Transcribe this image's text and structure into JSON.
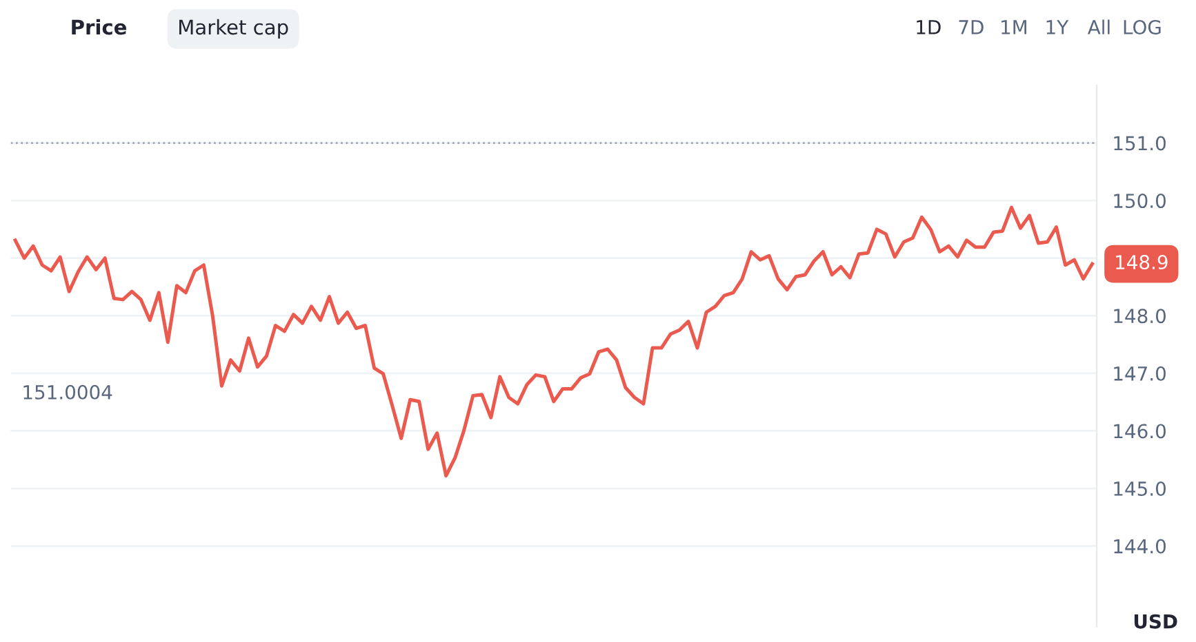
{
  "chart_data": {
    "type": "line",
    "ylabel": "USD",
    "annotations": [
      "Price",
      "Market cap",
      "1D",
      "7D",
      "1M",
      "1Y",
      "All",
      "LOG",
      "151.0004"
    ],
    "categories": [
      null,
      null,
      null,
      null,
      null,
      null,
      null,
      null,
      null,
      null,
      null,
      null,
      null,
      null,
      null,
      null,
      null,
      null,
      null,
      null,
      null,
      null,
      null,
      null,
      null,
      null,
      null,
      null,
      null,
      null,
      null,
      null,
      null,
      null,
      null,
      null,
      null,
      null,
      null,
      null,
      null,
      null,
      null,
      null,
      null,
      null,
      null,
      null,
      null,
      null,
      null,
      null,
      null,
      null,
      null,
      null,
      null,
      null,
      null,
      null,
      null,
      null,
      null,
      null,
      null,
      null,
      null,
      null,
      null,
      null,
      null,
      null,
      null,
      null,
      null,
      null,
      null,
      null,
      null,
      null,
      null,
      null,
      null,
      null,
      null,
      null,
      null,
      null,
      null,
      null,
      null,
      null,
      null,
      null,
      null,
      null,
      null,
      null,
      null,
      null,
      null,
      null,
      null,
      null,
      null,
      null,
      null,
      null,
      null,
      null,
      null,
      null,
      null,
      null,
      null,
      null,
      null,
      null,
      null,
      null,
      null
    ],
    "series": [
      {
        "color": "#ea5a4f",
        "values": [
          149.31,
          149.0,
          149.21,
          148.88,
          148.78,
          149.02,
          148.42,
          148.76,
          149.02,
          148.8,
          149.0,
          148.3,
          148.28,
          148.42,
          148.28,
          147.92,
          148.4,
          147.54,
          148.52,
          148.4,
          148.78,
          148.88,
          147.99,
          146.78,
          147.23,
          147.04,
          147.61,
          147.11,
          147.3,
          147.83,
          147.73,
          148.02,
          147.87,
          148.16,
          147.92,
          148.33,
          147.87,
          148.06,
          147.78,
          147.83,
          147.09,
          146.99,
          146.44,
          145.87,
          146.54,
          146.51,
          145.68,
          145.96,
          145.22,
          145.53,
          146.01,
          146.61,
          146.63,
          146.23,
          146.94,
          146.58,
          146.47,
          146.8,
          146.97,
          146.94,
          146.51,
          146.73,
          146.73,
          146.92,
          146.99,
          147.37,
          147.42,
          147.23,
          146.75,
          146.58,
          146.47,
          147.44,
          147.44,
          147.68,
          147.75,
          147.9,
          147.44,
          148.06,
          148.16,
          148.35,
          148.4,
          148.64,
          149.11,
          148.97,
          149.04,
          148.64,
          148.45,
          148.68,
          148.71,
          148.95,
          149.11,
          148.71,
          148.85,
          148.66,
          149.07,
          149.09,
          149.5,
          149.42,
          149.02,
          149.28,
          149.35,
          149.71,
          149.5,
          149.11,
          149.21,
          149.02,
          149.31,
          149.19,
          149.19,
          149.45,
          149.47,
          149.88,
          149.52,
          149.74,
          149.26,
          149.28,
          149.54,
          148.88,
          148.97,
          148.64,
          148.9
        ],
        "value_labels": [
          null,
          null,
          null,
          null,
          null,
          null,
          null,
          null,
          null,
          null,
          null,
          null,
          null,
          null,
          null,
          null,
          null,
          null,
          null,
          null,
          null,
          null,
          null,
          null,
          null,
          null,
          null,
          null,
          null,
          null,
          null,
          null,
          null,
          null,
          null,
          null,
          null,
          null,
          null,
          null,
          null,
          null,
          null,
          null,
          null,
          null,
          null,
          null,
          null,
          null,
          null,
          null,
          null,
          null,
          null,
          null,
          null,
          null,
          null,
          null,
          null,
          null,
          null,
          null,
          null,
          null,
          null,
          null,
          null,
          null,
          null,
          null,
          null,
          null,
          null,
          null,
          null,
          null,
          null,
          null,
          null,
          null,
          null,
          null,
          null,
          null,
          null,
          null,
          null,
          null,
          null,
          null,
          null,
          null,
          null,
          null,
          null,
          null,
          null,
          null,
          null,
          null,
          null,
          null,
          null,
          null,
          null,
          null,
          null,
          null,
          null,
          null,
          null,
          null,
          null,
          null,
          null,
          null,
          null,
          null,
          "148.9"
        ]
      }
    ],
    "ylim": [
      142.6,
      152.0
    ],
    "yticks": [
      {
        "value": 144,
        "label": "144.0"
      },
      {
        "value": 145,
        "label": "145.0"
      },
      {
        "value": 146,
        "label": "146.0"
      },
      {
        "value": 147,
        "label": "147.0"
      },
      {
        "value": 148,
        "label": "148.0"
      },
      {
        "value": 149,
        "label": null
      },
      {
        "value": 150,
        "label": "150.0"
      },
      {
        "value": 151,
        "label": "151.0"
      }
    ],
    "tick_labels": "y",
    "grid": "y",
    "ref_lines": [
      {
        "axis": "y",
        "value": 151,
        "color": "#a0a7b4",
        "line_style": "dotted"
      }
    ]
  }
}
